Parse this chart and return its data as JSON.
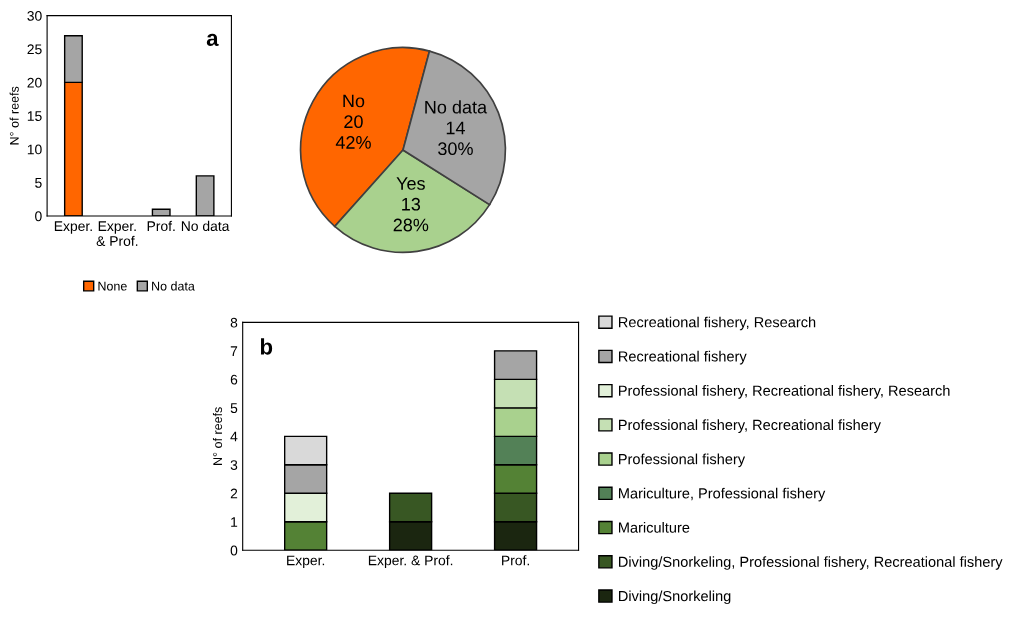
{
  "chart_data": [
    {
      "type": "bar",
      "stacked": true,
      "ylabel": "N° of reefs",
      "annotations": [
        "a"
      ],
      "categories": [
        "Exper.",
        "Exper.\n& Prof.",
        "Prof.",
        "No data"
      ],
      "ylim": [
        0,
        30
      ],
      "yticks": [
        0,
        5,
        10,
        15,
        20,
        25,
        30
      ],
      "legend": "bottom",
      "grid": false,
      "series": [
        {
          "name": "None",
          "color": "#ff6600",
          "values": [
            20,
            0,
            0,
            0
          ]
        },
        {
          "name": "No data",
          "color": "#a5a5a5",
          "values": [
            7,
            0,
            1,
            6
          ]
        }
      ]
    },
    {
      "type": "pie",
      "categories": [
        "No",
        "Yes",
        "No data"
      ],
      "values": [
        20,
        13,
        14
      ],
      "colors": [
        "#ff6600",
        "#a9d18e",
        "#a5a5a5"
      ],
      "value_labels": [
        "20\n42%",
        "13\n28%",
        "14\n30%"
      ]
    },
    {
      "type": "bar",
      "stacked": true,
      "ylabel": "N° of reefs",
      "annotations": [
        "b"
      ],
      "categories": [
        "Exper.",
        "Exper. & Prof.",
        "Prof."
      ],
      "ylim": [
        0,
        8
      ],
      "yticks": [
        0,
        1,
        2,
        3,
        4,
        5,
        6,
        7,
        8
      ],
      "legend": "right",
      "grid": false,
      "series": [
        {
          "name": "Diving/Snorkeling",
          "color": "#1b2610",
          "values": [
            0,
            1,
            1
          ]
        },
        {
          "name": "Diving/Snorkeling, Professional fishery, Recreational fishery",
          "color": "#385723",
          "values": [
            0,
            1,
            1
          ]
        },
        {
          "name": "Mariculture",
          "color": "#548235",
          "values": [
            1,
            0,
            1
          ]
        },
        {
          "name": "Mariculture, Professional fishery",
          "color": "#538157",
          "values": [
            0,
            0,
            1
          ]
        },
        {
          "name": "Professional fishery",
          "color": "#a9d18e",
          "values": [
            0,
            0,
            1
          ]
        },
        {
          "name": "Professional fishery, Recreational fishery",
          "color": "#c5e0b4",
          "values": [
            0,
            0,
            1
          ]
        },
        {
          "name": "Professional fishery, Recreational fishery, Research",
          "color": "#e2f0d9",
          "values": [
            1,
            0,
            0
          ]
        },
        {
          "name": "Recreational fishery",
          "color": "#a5a5a5",
          "values": [
            1,
            0,
            1
          ]
        },
        {
          "name": "Recreational fishery, Research",
          "color": "#d9d9d9",
          "values": [
            1,
            0,
            0
          ]
        }
      ]
    }
  ]
}
